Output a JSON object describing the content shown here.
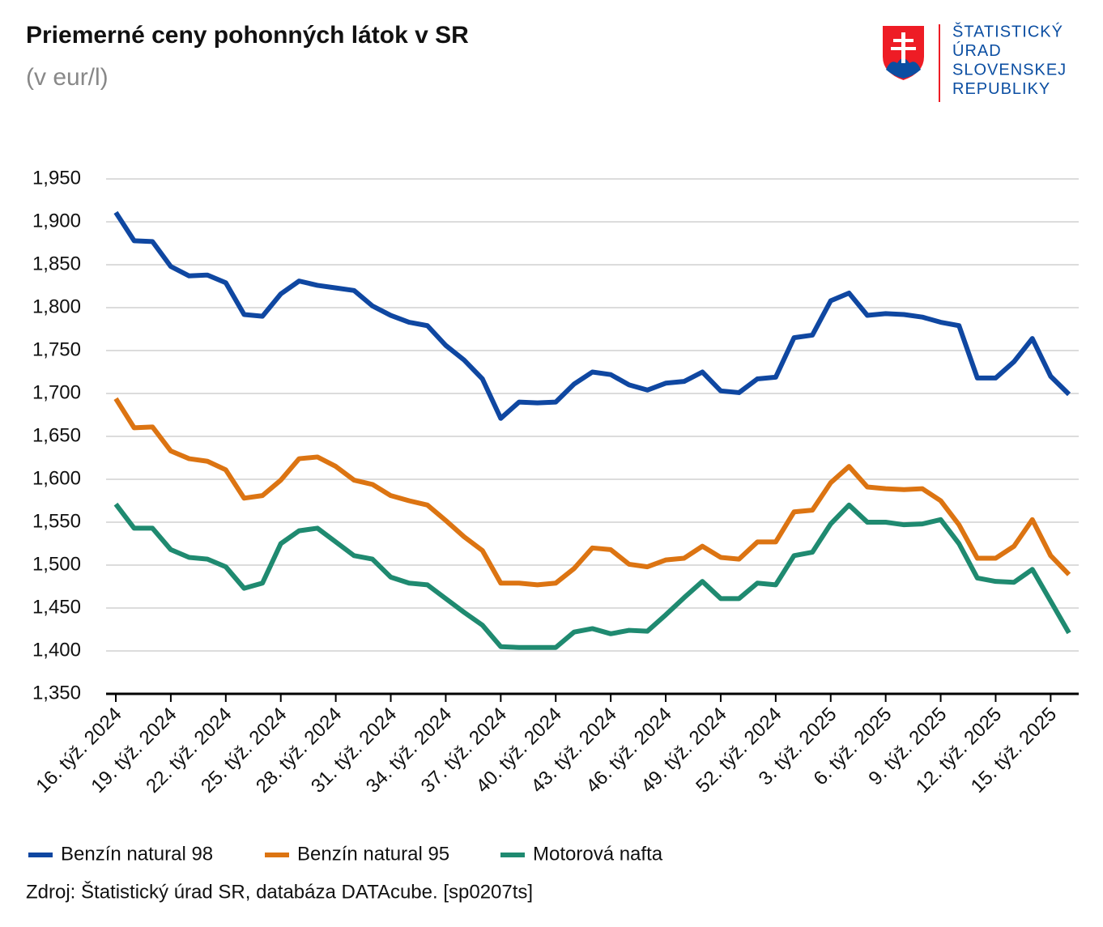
{
  "logo": {
    "lines": [
      "ŠTATISTICKÝ",
      "ÚRAD",
      "SLOVENSKEJ",
      "REPUBLIKY"
    ]
  },
  "chart_data": {
    "type": "line",
    "title": "Priemerné ceny pohonných látok v SR",
    "subtitle": "(v eur/l)",
    "source": "Zdroj: Štatistický úrad SR, databáza DATAcube. [sp0207ts]",
    "categories": [
      "16. týž. 2024",
      null,
      null,
      "19. týž. 2024",
      null,
      null,
      "22. týž. 2024",
      null,
      null,
      "25. týž. 2024",
      null,
      null,
      "28. týž. 2024",
      null,
      null,
      "31. týž. 2024",
      null,
      null,
      "34. týž. 2024",
      null,
      null,
      "37. týž. 2024",
      null,
      null,
      "40. týž. 2024",
      null,
      null,
      "43. týž. 2024",
      null,
      null,
      "46. týž. 2024",
      null,
      null,
      "49. týž. 2024",
      null,
      null,
      "52. týž. 2024",
      null,
      null,
      "3. týž. 2025",
      null,
      null,
      "6. týž. 2025",
      null,
      null,
      "9. týž. 2025",
      null,
      null,
      "12. týž. 2025",
      null,
      null,
      "15. týž. 2025",
      null
    ],
    "series": [
      {
        "name": "Benzín natural 98",
        "color": "#0f47a1",
        "values": [
          1.911,
          1.878,
          1.877,
          1.848,
          1.837,
          1.838,
          1.829,
          1.792,
          1.79,
          1.816,
          1.831,
          1.826,
          1.823,
          1.82,
          1.802,
          1.791,
          1.783,
          1.779,
          1.756,
          1.739,
          1.717,
          1.671,
          1.69,
          1.689,
          1.69,
          1.711,
          1.725,
          1.722,
          1.71,
          1.704,
          1.712,
          1.714,
          1.725,
          1.703,
          1.701,
          1.717,
          1.719,
          1.765,
          1.768,
          1.808,
          1.817,
          1.791,
          1.793,
          1.792,
          1.789,
          1.783,
          1.779,
          1.718,
          1.718,
          1.737,
          1.764,
          1.72,
          1.699
        ]
      },
      {
        "name": "Benzín natural 95",
        "color": "#dc7412",
        "values": [
          1.694,
          1.66,
          1.661,
          1.633,
          1.624,
          1.621,
          1.611,
          1.578,
          1.581,
          1.599,
          1.624,
          1.626,
          1.615,
          1.599,
          1.594,
          1.581,
          1.575,
          1.57,
          1.552,
          1.533,
          1.517,
          1.479,
          1.479,
          1.477,
          1.479,
          1.496,
          1.52,
          1.518,
          1.501,
          1.498,
          1.506,
          1.508,
          1.522,
          1.509,
          1.507,
          1.527,
          1.527,
          1.562,
          1.564,
          1.596,
          1.615,
          1.591,
          1.589,
          1.588,
          1.589,
          1.575,
          1.547,
          1.508,
          1.508,
          1.522,
          1.553,
          1.511,
          1.489
        ]
      },
      {
        "name": "Motorová nafta",
        "color": "#1f8a70",
        "values": [
          1.571,
          1.543,
          1.543,
          1.518,
          1.509,
          1.507,
          1.498,
          1.473,
          1.479,
          1.525,
          1.54,
          1.543,
          1.527,
          1.511,
          1.507,
          1.486,
          1.479,
          1.477,
          1.461,
          1.445,
          1.43,
          1.405,
          1.404,
          1.404,
          1.404,
          1.422,
          1.426,
          1.42,
          1.424,
          1.423,
          1.442,
          1.462,
          1.481,
          1.461,
          1.461,
          1.479,
          1.477,
          1.511,
          1.515,
          1.548,
          1.57,
          1.55,
          1.55,
          1.547,
          1.548,
          1.553,
          1.525,
          1.485,
          1.481,
          1.48,
          1.495,
          1.458,
          1.421
        ]
      }
    ],
    "ylim": [
      1.35,
      1.95
    ],
    "yticks": [
      {
        "value": 1.35,
        "label": "1,350"
      },
      {
        "value": 1.4,
        "label": "1,400"
      },
      {
        "value": 1.45,
        "label": "1,450"
      },
      {
        "value": 1.5,
        "label": "1,500"
      },
      {
        "value": 1.55,
        "label": "1,550"
      },
      {
        "value": 1.6,
        "label": "1,600"
      },
      {
        "value": 1.65,
        "label": "1,650"
      },
      {
        "value": 1.7,
        "label": "1,700"
      },
      {
        "value": 1.75,
        "label": "1,750"
      },
      {
        "value": 1.8,
        "label": "1,800"
      },
      {
        "value": 1.85,
        "label": "1,850"
      },
      {
        "value": 1.9,
        "label": "1,900"
      },
      {
        "value": 1.95,
        "label": "1,950"
      }
    ],
    "grid": true,
    "legend": "bottom"
  }
}
